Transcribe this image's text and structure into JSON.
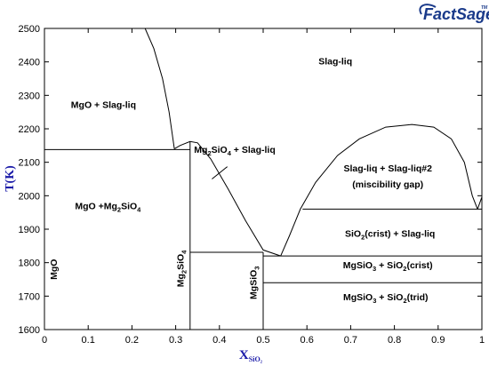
{
  "logo": {
    "text": "FactSage",
    "tm": "TM",
    "color": "#1a3a8a"
  },
  "chart_data": {
    "type": "phase-diagram",
    "xlabel": {
      "main": "X",
      "sub": "SiO₂"
    },
    "ylabel": "T(K)",
    "xlim": [
      0,
      1
    ],
    "ylim": [
      1600,
      2500
    ],
    "x_ticks": [
      0,
      0.1,
      0.2,
      0.3,
      0.4,
      0.5,
      0.6,
      0.7,
      0.8,
      0.9,
      1
    ],
    "x_tick_labels": [
      "0",
      "0.1",
      "0.2",
      "0.3",
      "0.4",
      "0.5",
      "0.6",
      "0.7",
      "0.8",
      "0.9",
      "1"
    ],
    "y_ticks": [
      1600,
      1700,
      1800,
      1900,
      2000,
      2100,
      2200,
      2300,
      2400,
      2500
    ],
    "y_tick_labels": [
      "1600",
      "1700",
      "1800",
      "1900",
      "2000",
      "2100",
      "2200",
      "2300",
      "2400",
      "2500"
    ],
    "axis_color": "#1a1aa8",
    "curves": [
      {
        "id": "mgo-liquidus",
        "points": [
          [
            0.23,
            2500
          ],
          [
            0.25,
            2440
          ],
          [
            0.27,
            2350
          ],
          [
            0.285,
            2250
          ],
          [
            0.297,
            2140
          ]
        ]
      },
      {
        "id": "mg2sio4-liquidus",
        "points": [
          [
            0.297,
            2140
          ],
          [
            0.31,
            2150
          ],
          [
            0.333,
            2162
          ],
          [
            0.35,
            2158
          ],
          [
            0.38,
            2110
          ],
          [
            0.42,
            2020
          ],
          [
            0.46,
            1925
          ],
          [
            0.5,
            1838
          ],
          [
            0.54,
            1820
          ]
        ]
      },
      {
        "id": "miscibility-gap",
        "points": [
          [
            0.54,
            1820
          ],
          [
            0.56,
            1880
          ],
          [
            0.585,
            1960
          ],
          [
            0.62,
            2040
          ],
          [
            0.67,
            2120
          ],
          [
            0.72,
            2170
          ],
          [
            0.78,
            2205
          ],
          [
            0.84,
            2213
          ],
          [
            0.89,
            2205
          ],
          [
            0.93,
            2170
          ],
          [
            0.96,
            2100
          ],
          [
            0.978,
            2000
          ],
          [
            0.99,
            1960
          ]
        ]
      },
      {
        "id": "sio2-liquidus",
        "points": [
          [
            0.99,
            1960
          ],
          [
            1.0,
            1996
          ]
        ]
      },
      {
        "id": "eutectic-mgo-mg2sio4",
        "points": [
          [
            0,
            2138
          ],
          [
            0.333,
            2138
          ]
        ]
      },
      {
        "id": "mg2sio4-line",
        "points": [
          [
            0.333,
            1600
          ],
          [
            0.333,
            2162
          ]
        ]
      },
      {
        "id": "peritectic-mgsio3",
        "points": [
          [
            0.333,
            1831
          ],
          [
            0.5,
            1831
          ]
        ]
      },
      {
        "id": "mgsio3-line",
        "points": [
          [
            0.5,
            1600
          ],
          [
            0.5,
            1831
          ]
        ]
      },
      {
        "id": "eutectic-mgsio3-sio2",
        "points": [
          [
            0.5,
            1820
          ],
          [
            1,
            1820
          ]
        ]
      },
      {
        "id": "monotectic",
        "points": [
          [
            0.59,
            1960
          ],
          [
            1,
            1960
          ]
        ]
      },
      {
        "id": "cristobalite-tridymite",
        "points": [
          [
            0.5,
            1740
          ],
          [
            1,
            1740
          ]
        ]
      },
      {
        "id": "pointer",
        "points": [
          [
            0.383,
            2050
          ],
          [
            0.418,
            2087
          ]
        ]
      }
    ],
    "region_labels": [
      {
        "id": "slag-liq",
        "parts": [
          [
            "Slag-liq",
            ""
          ]
        ],
        "x": 0.665,
        "y": 2392,
        "anchor": "middle",
        "rotate": 0
      },
      {
        "id": "mgo-slag",
        "parts": [
          [
            "MgO + Slag-liq",
            ""
          ]
        ],
        "x": 0.135,
        "y": 2262,
        "anchor": "middle",
        "rotate": 0
      },
      {
        "id": "mg2sio4-slag",
        "parts": [
          [
            "Mg",
            ""
          ],
          [
            "2",
            "sub"
          ],
          [
            "SiO",
            ""
          ],
          [
            "4",
            "sub"
          ],
          [
            " + Slag-liq",
            ""
          ]
        ],
        "x": 0.435,
        "y": 2128,
        "anchor": "middle",
        "rotate": 0
      },
      {
        "id": "slag-slag2",
        "parts": [
          [
            "Slag-liq + Slag-liq#2",
            ""
          ]
        ],
        "x": 0.785,
        "y": 2072,
        "anchor": "middle",
        "rotate": 0
      },
      {
        "id": "misc-gap",
        "parts": [
          [
            "(miscibility gap)",
            ""
          ]
        ],
        "x": 0.785,
        "y": 2025,
        "anchor": "middle",
        "rotate": 0
      },
      {
        "id": "mgo-mg2sio4",
        "parts": [
          [
            "MgO +Mg",
            ""
          ],
          [
            "2",
            "sub"
          ],
          [
            "SiO",
            ""
          ],
          [
            "4",
            "sub"
          ]
        ],
        "x": 0.145,
        "y": 1960,
        "anchor": "middle",
        "rotate": 0
      },
      {
        "id": "sio2crist-slag",
        "parts": [
          [
            "SiO",
            ""
          ],
          [
            "2",
            "sub"
          ],
          [
            "(crist) + Slag-liq",
            ""
          ]
        ],
        "x": 0.79,
        "y": 1878,
        "anchor": "middle",
        "rotate": 0
      },
      {
        "id": "mgsio3-crist",
        "parts": [
          [
            "MgSiO",
            ""
          ],
          [
            "3",
            "sub"
          ],
          [
            " + SiO",
            ""
          ],
          [
            "2",
            "sub"
          ],
          [
            "(crist)",
            ""
          ]
        ],
        "x": 0.785,
        "y": 1783,
        "anchor": "middle",
        "rotate": 0
      },
      {
        "id": "mgsio3-trid",
        "parts": [
          [
            "MgSiO",
            ""
          ],
          [
            "3",
            "sub"
          ],
          [
            " + SiO",
            ""
          ],
          [
            "2",
            "sub"
          ],
          [
            "(trid)",
            ""
          ]
        ],
        "x": 0.78,
        "y": 1688,
        "anchor": "middle",
        "rotate": 0
      },
      {
        "id": "mgo-compound",
        "parts": [
          [
            "MgO",
            ""
          ]
        ],
        "x": 0.028,
        "y": 1780,
        "anchor": "middle",
        "rotate": -90
      },
      {
        "id": "mg2sio4-compound",
        "parts": [
          [
            "Mg",
            ""
          ],
          [
            "2",
            "sub"
          ],
          [
            "SiO",
            ""
          ],
          [
            "4",
            "sub"
          ]
        ],
        "x": 0.318,
        "y": 1782,
        "anchor": "middle",
        "rotate": -90
      },
      {
        "id": "mgsio3-compound",
        "parts": [
          [
            "MgSiO",
            ""
          ],
          [
            "3",
            "sub"
          ]
        ],
        "x": 0.485,
        "y": 1740,
        "anchor": "middle",
        "rotate": -90
      }
    ]
  }
}
